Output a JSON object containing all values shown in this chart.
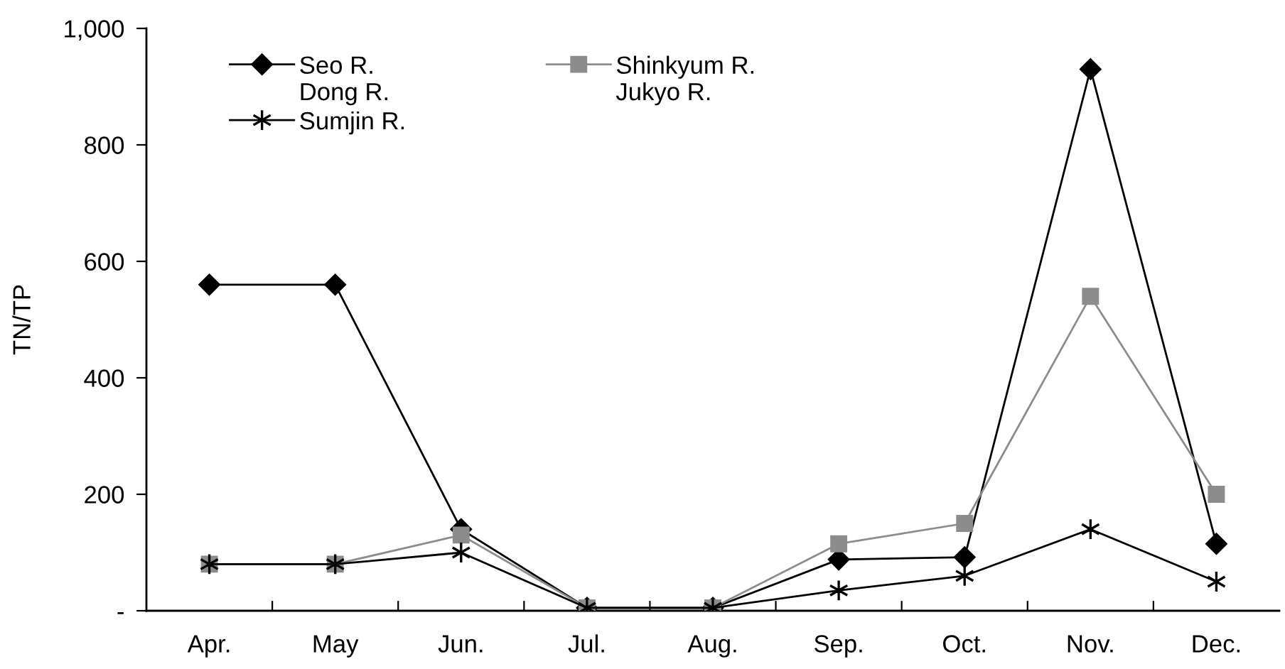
{
  "chart_data": {
    "type": "line",
    "categories": [
      "Apr.",
      "May",
      "Jun.",
      "Jul.",
      "Aug.",
      "Sep.",
      "Oct.",
      "Nov.",
      "Dec."
    ],
    "ylabel": "TN/TP",
    "ylim": [
      0,
      1000
    ],
    "yticks": [
      {
        "value": 0,
        "label": "-"
      },
      200,
      400,
      600,
      800,
      {
        "value": 1000,
        "label": "1,000"
      }
    ],
    "legend": "top left",
    "line_style": "solid",
    "series": [
      {
        "name": "Seo R.\nDong R.",
        "color": "#000000",
        "marker": "diamond",
        "values": [
          560,
          560,
          140,
          5,
          5,
          88,
          92,
          930,
          115
        ]
      },
      {
        "name": "Sumjin R.",
        "color": "#000000",
        "marker": "cross",
        "values": [
          80,
          80,
          100,
          5,
          5,
          35,
          60,
          140,
          50
        ]
      },
      {
        "name": "Shinkyum R.\nJukyo R.",
        "color": "#8c8c8c",
        "marker": "square",
        "values": [
          80,
          80,
          130,
          5,
          5,
          115,
          150,
          540,
          200
        ]
      }
    ]
  }
}
